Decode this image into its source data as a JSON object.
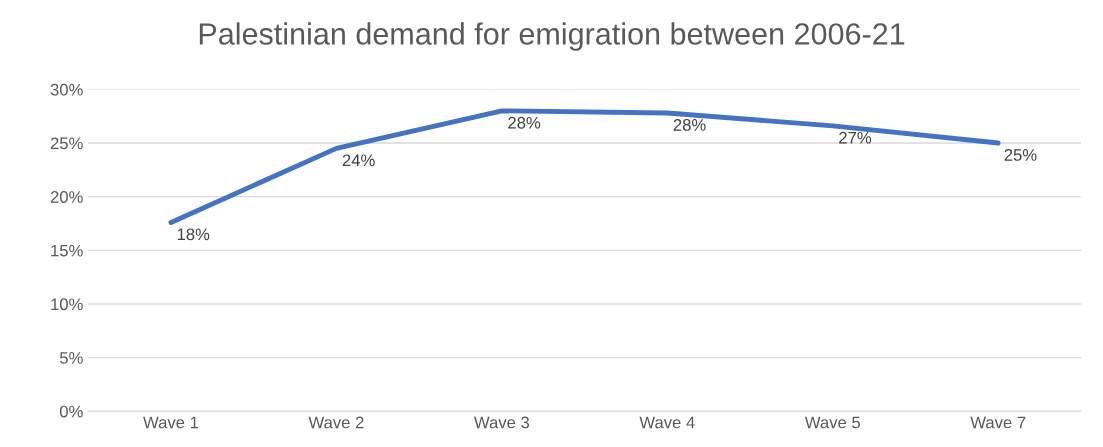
{
  "chart_data": {
    "type": "line",
    "title": "Palestinian demand for emigration between 2006-21",
    "categories": [
      "Wave 1",
      "Wave 2",
      "Wave 3",
      "Wave 4",
      "Wave 5",
      "Wave 7"
    ],
    "series": [
      {
        "color": "#4472c4",
        "values": [
          17.6,
          24.5,
          28.0,
          27.8,
          26.6,
          25.0
        ],
        "value_labels": [
          "18%",
          "24%",
          "28%",
          "28%",
          "27%",
          "25%"
        ]
      }
    ],
    "ylim": [
      0,
      30
    ],
    "yticks": [
      {
        "value": 0,
        "label": "0%"
      },
      {
        "value": 5,
        "label": "5%"
      },
      {
        "value": 10,
        "label": "10%"
      },
      {
        "value": 15,
        "label": "15%"
      },
      {
        "value": 20,
        "label": "20%"
      },
      {
        "value": 25,
        "label": "25%"
      },
      {
        "value": 30,
        "label": "30%"
      }
    ],
    "grid": "y",
    "marker": "none",
    "line_style": "solid"
  }
}
